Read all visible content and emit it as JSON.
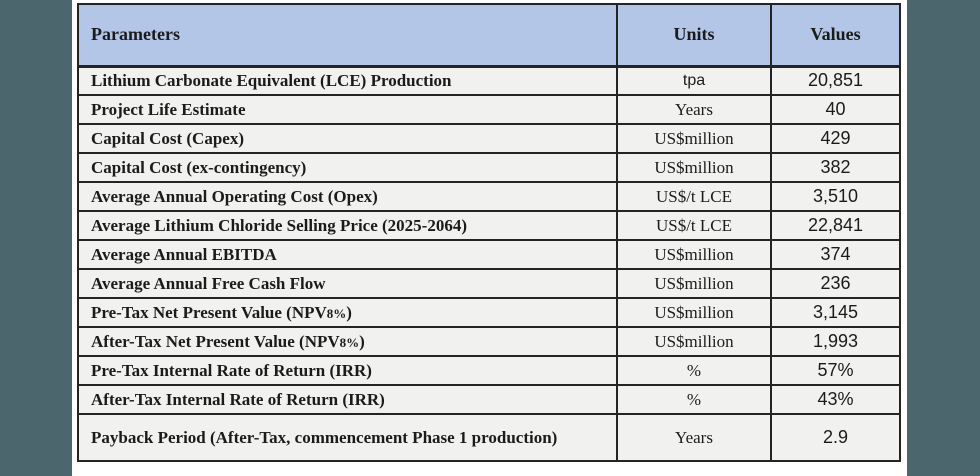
{
  "page": {
    "background_color": "#4c666d",
    "card_background": "#ffffff",
    "header_background": "#b3c6e7",
    "row_background": "#f1f1f0",
    "border_color": "#242424"
  },
  "table": {
    "columns": [
      {
        "key": "parameter",
        "label": "Parameters"
      },
      {
        "key": "units",
        "label": "Units"
      },
      {
        "key": "value",
        "label": "Values"
      }
    ],
    "rows": [
      {
        "parameter": "Lithium Carbonate Equivalent (LCE) Production",
        "units": "tpa",
        "units_style": "sans",
        "value": "20,851"
      },
      {
        "parameter": "Project Life Estimate",
        "units": "Years",
        "value": "40"
      },
      {
        "parameter": "Capital Cost (Capex)",
        "units": "US$million",
        "value": "429"
      },
      {
        "parameter": "Capital Cost (ex-contingency)",
        "units": "US$million",
        "value": "382"
      },
      {
        "parameter": "Average Annual Operating Cost (Opex)",
        "units": "US$/t LCE",
        "value": "3,510"
      },
      {
        "parameter": "Average Lithium Chloride Selling Price (2025-2064)",
        "units": "US$/t LCE",
        "value": "22,841"
      },
      {
        "parameter": "Average Annual EBITDA",
        "units": "US$million",
        "value": "374"
      },
      {
        "parameter": "Average Annual Free Cash Flow",
        "units": "US$million",
        "value": "236"
      },
      {
        "parameter": "Pre-Tax Net Present Value (NPV",
        "parameter_small": "8%",
        "parameter_after": ")",
        "units": "US$million",
        "value": "3,145"
      },
      {
        "parameter": "After-Tax Net Present Value (NPV",
        "parameter_small": "8%",
        "parameter_after": ")",
        "units": "US$million",
        "value": "1,993"
      },
      {
        "parameter": "Pre-Tax Internal Rate of Return (IRR)",
        "units": "%",
        "value": "57%"
      },
      {
        "parameter": "After-Tax Internal Rate of Return (IRR)",
        "units": "%",
        "value": "43%"
      },
      {
        "parameter": "Payback Period (After-Tax, commencement Phase 1 production)",
        "units": "Years",
        "value": "2.9",
        "tall": true
      }
    ]
  }
}
